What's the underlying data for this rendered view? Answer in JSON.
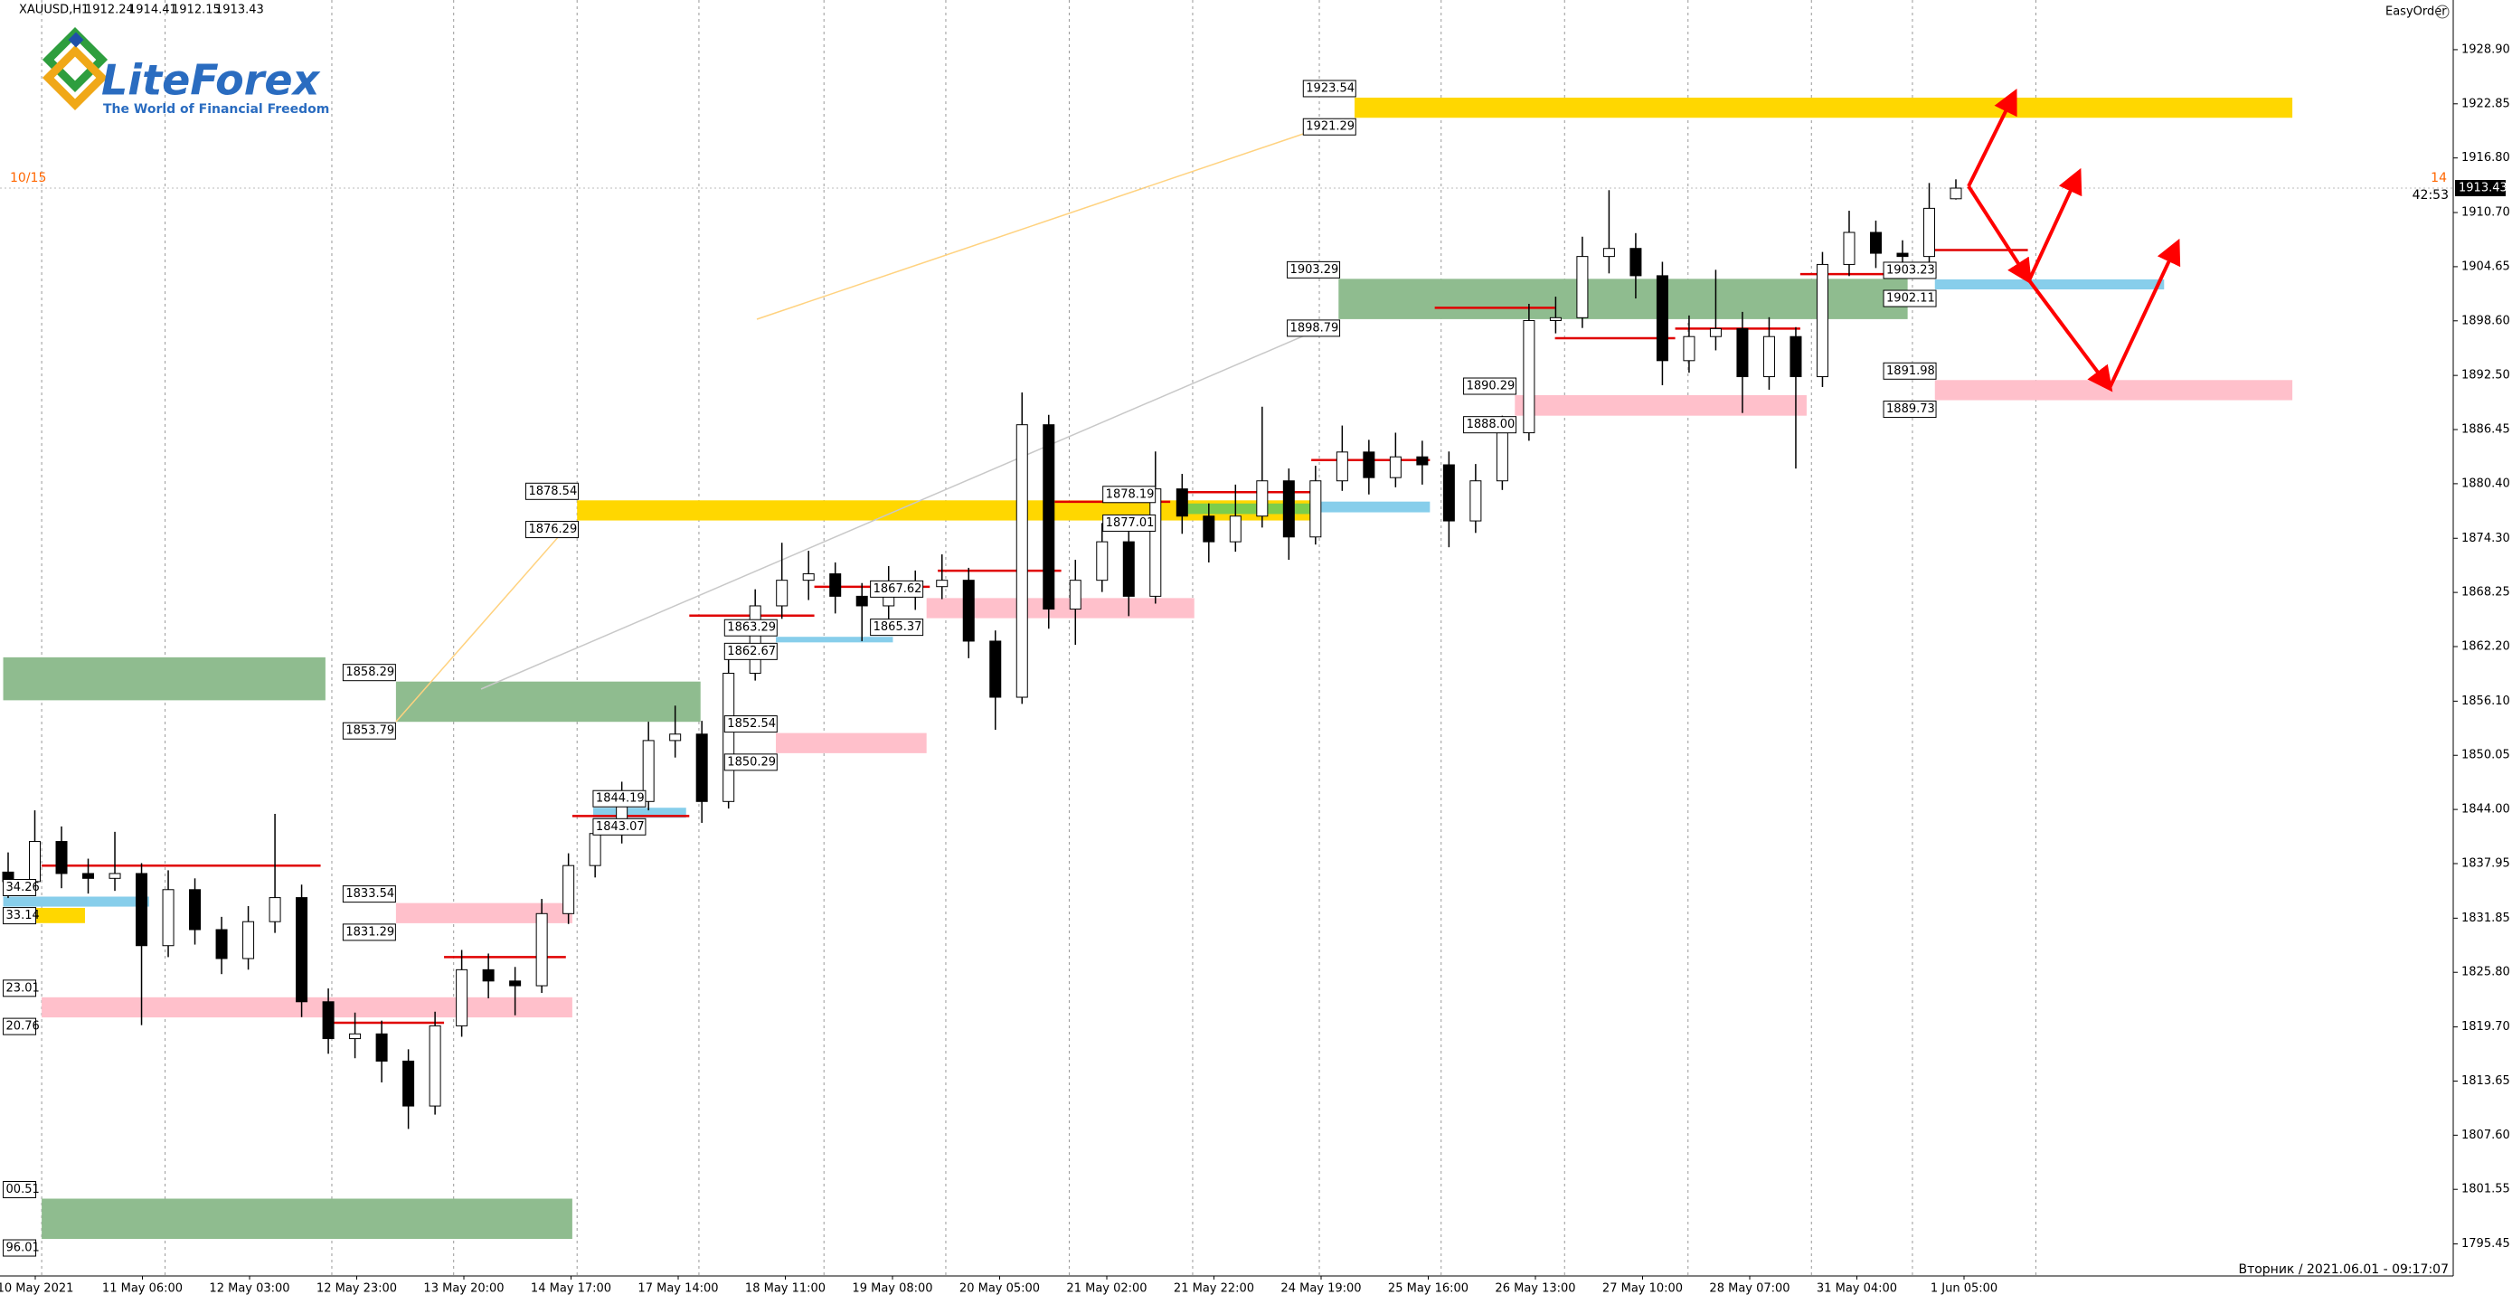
{
  "header": {
    "symbol": "XAUUSD,H1",
    "easy_order": "EasyOrder",
    "left_marker": "10/15",
    "right_marker": "14",
    "timer": "42:53",
    "server_time": "Вторник  /  2021.06.01 - 09:17:07",
    "logo_name": "LiteForex",
    "logo_tagline": "The World of Financial Freedom"
  },
  "chart_data": {
    "type": "candlestick",
    "ylim": [
      1791.87,
      1934.45
    ],
    "yticks": [
      {
        "value": 1928.9,
        "label": "1928.90"
      },
      {
        "value": 1922.85,
        "label": "1922.85"
      },
      {
        "value": 1916.8,
        "label": "1916.80"
      },
      {
        "value": 1910.7,
        "label": "1910.70"
      },
      {
        "value": 1904.65,
        "label": "1904.65"
      },
      {
        "value": 1898.6,
        "label": "1898.60"
      },
      {
        "value": 1892.5,
        "label": "1892.50"
      },
      {
        "value": 1886.45,
        "label": "1886.45"
      },
      {
        "value": 1880.4,
        "label": "1880.40"
      },
      {
        "value": 1874.3,
        "label": "1874.30"
      },
      {
        "value": 1868.25,
        "label": "1868.25"
      },
      {
        "value": 1862.2,
        "label": "1862.20"
      },
      {
        "value": 1856.1,
        "label": "1856.10"
      },
      {
        "value": 1850.05,
        "label": "1850.05"
      },
      {
        "value": 1844.0,
        "label": "1844.00"
      },
      {
        "value": 1837.95,
        "label": "1837.95"
      },
      {
        "value": 1831.85,
        "label": "1831.85"
      },
      {
        "value": 1825.8,
        "label": "1825.80"
      },
      {
        "value": 1819.7,
        "label": "1819.70"
      },
      {
        "value": 1813.65,
        "label": "1813.65"
      },
      {
        "value": 1807.6,
        "label": "1807.60"
      },
      {
        "value": 1801.55,
        "label": "1801.55"
      },
      {
        "value": 1795.45,
        "label": "1795.45"
      }
    ],
    "x_labels": [
      "10 May 2021",
      "11 May 06:00",
      "12 May 03:00",
      "12 May 23:00",
      "13 May 20:00",
      "14 May 17:00",
      "17 May 14:00",
      "18 May 11:00",
      "19 May 08:00",
      "20 May 05:00",
      "21 May 02:00",
      "21 May 22:00",
      "24 May 19:00",
      "25 May 16:00",
      "26 May 13:00",
      "27 May 10:00",
      "28 May 07:00",
      "31 May 04:00",
      "1 Jun 05:00"
    ],
    "up_color": "#ffffff",
    "down_color": "#000000",
    "series": {
      "open": [
        1837.0,
        1835.94,
        1840.42,
        1836.84,
        1836.3,
        1836.84,
        1828.78,
        1835.04,
        1830.57,
        1827.34,
        1831.46,
        1834.15,
        1822.51,
        1818.39,
        1818.92,
        1815.88,
        1810.86,
        1819.82,
        1826.09,
        1824.83,
        1824.3,
        1832.36,
        1837.73,
        1841.31,
        1844.89,
        1851.7,
        1852.42,
        1844.89,
        1859.22,
        1866.75,
        1869.61,
        1870.33,
        1867.82,
        1866.75,
        1868.54,
        1868.9,
        1869.61,
        1862.81,
        1856.54,
        1886.99,
        1866.39,
        1869.61,
        1873.91,
        1867.82,
        1879.82,
        1876.78,
        1873.91,
        1876.78,
        1880.72,
        1874.45,
        1880.72,
        1883.94,
        1881.08,
        1883.4,
        1882.51,
        1876.24,
        1880.72,
        1886.09,
        1898.63,
        1898.95,
        1905.79,
        1906.69,
        1903.64,
        1894.15,
        1896.84,
        1897.73,
        1892.36,
        1896.84,
        1892.36,
        1904.9,
        1908.48,
        1906.15,
        1905.79,
        1912.24
      ],
      "high": [
        1839.2,
        1843.9,
        1842.1,
        1838.5,
        1841.5,
        1838.0,
        1837.2,
        1836.3,
        1832.0,
        1833.2,
        1843.5,
        1835.6,
        1824.0,
        1821.3,
        1820.4,
        1817.2,
        1821.4,
        1828.3,
        1827.9,
        1826.4,
        1834.0,
        1839.1,
        1843.0,
        1847.1,
        1853.8,
        1855.6,
        1853.9,
        1861.0,
        1868.6,
        1873.8,
        1872.9,
        1871.6,
        1869.3,
        1871.2,
        1870.7,
        1872.5,
        1871.0,
        1864.0,
        1890.6,
        1888.1,
        1871.9,
        1876.0,
        1875.2,
        1884.0,
        1881.5,
        1878.2,
        1880.3,
        1889.0,
        1882.1,
        1882.4,
        1886.9,
        1885.3,
        1886.1,
        1885.2,
        1884.0,
        1882.6,
        1888.0,
        1900.5,
        1901.3,
        1908.0,
        1913.2,
        1908.4,
        1905.2,
        1899.2,
        1904.3,
        1899.6,
        1899.0,
        1897.9,
        1906.3,
        1910.9,
        1909.8,
        1907.6,
        1914.0,
        1914.41
      ],
      "low": [
        1834.1,
        1834.8,
        1835.2,
        1834.6,
        1834.9,
        1819.9,
        1827.5,
        1828.9,
        1825.6,
        1826.1,
        1830.2,
        1820.8,
        1816.7,
        1816.2,
        1813.5,
        1808.3,
        1809.9,
        1818.6,
        1822.9,
        1821.0,
        1823.5,
        1831.2,
        1836.4,
        1840.2,
        1843.9,
        1849.8,
        1842.5,
        1844.1,
        1858.4,
        1865.3,
        1867.4,
        1865.9,
        1862.8,
        1865.1,
        1866.3,
        1867.5,
        1860.9,
        1852.9,
        1855.8,
        1864.2,
        1862.4,
        1868.3,
        1865.6,
        1867.0,
        1874.8,
        1871.6,
        1872.8,
        1875.5,
        1871.9,
        1873.6,
        1879.6,
        1879.2,
        1880.0,
        1880.3,
        1873.3,
        1874.9,
        1879.7,
        1885.2,
        1897.2,
        1897.8,
        1903.9,
        1901.1,
        1891.4,
        1892.8,
        1895.3,
        1888.3,
        1890.9,
        1882.1,
        1891.2,
        1903.6,
        1904.5,
        1903.9,
        1905.0,
        1912.15
      ],
      "close": [
        1835.94,
        1840.42,
        1836.84,
        1836.3,
        1836.84,
        1828.78,
        1835.04,
        1830.57,
        1827.34,
        1831.46,
        1834.15,
        1822.51,
        1818.39,
        1818.92,
        1815.88,
        1810.86,
        1819.82,
        1826.09,
        1824.83,
        1824.3,
        1832.36,
        1837.73,
        1841.31,
        1844.89,
        1851.7,
        1852.42,
        1844.89,
        1859.22,
        1866.75,
        1869.61,
        1870.33,
        1867.82,
        1866.75,
        1868.54,
        1868.9,
        1869.61,
        1862.81,
        1856.54,
        1886.99,
        1866.39,
        1869.61,
        1873.91,
        1867.82,
        1879.82,
        1876.78,
        1873.91,
        1876.78,
        1880.72,
        1874.45,
        1880.72,
        1883.94,
        1881.08,
        1883.4,
        1882.51,
        1876.24,
        1880.72,
        1886.09,
        1898.63,
        1898.95,
        1905.79,
        1906.69,
        1903.64,
        1894.15,
        1896.84,
        1897.73,
        1892.36,
        1896.84,
        1892.36,
        1904.9,
        1908.48,
        1906.15,
        1905.79,
        1911.17,
        1913.43
      ]
    },
    "zones": [
      {
        "color": "#ffd700",
        "values": [
          1923.54,
          1921.29
        ]
      },
      {
        "color": "#8fbc8f",
        "values": [
          1903.29,
          1898.79
        ]
      },
      {
        "color": "#ffc0cb",
        "values": [
          1890.29,
          1888.0
        ],
        "value_labels": [
          "1890.29",
          "1888.00"
        ]
      },
      {
        "color": "#ffc0cb",
        "values": [
          1891.98,
          1889.73
        ]
      },
      {
        "color": "#87ceeb",
        "values": [
          1903.23,
          1902.11
        ]
      },
      {
        "color": "#ffd700",
        "values": [
          1878.54,
          1876.29
        ]
      },
      {
        "color": "#8fbc8f",
        "values": [
          1858.29,
          1853.79
        ]
      },
      {
        "color": "#ffc0cb",
        "values": [
          1852.54,
          1850.29
        ]
      },
      {
        "color": "#ffc0cb",
        "values": [
          1833.54,
          1831.29
        ]
      },
      {
        "color": "#ffc0cb",
        "values": [
          1823.01,
          1820.76
        ],
        "value_labels": [
          "23.01",
          "20.76"
        ]
      },
      {
        "color": "#8fbc8f",
        "values": [
          1800.51,
          1796.01
        ],
        "value_labels": [
          "00.51",
          "96.01"
        ]
      },
      {
        "color": "#87ceeb",
        "values": [
          1863.29,
          1862.67
        ]
      },
      {
        "color": "#ffc0cb",
        "values": [
          1867.62,
          1865.37
        ]
      },
      {
        "color": "#87ceeb",
        "values": [
          1844.19,
          1843.07
        ]
      },
      {
        "color": "#87ceeb",
        "values": [
          1834.26,
          1833.14
        ],
        "value_labels": [
          "34.26",
          "33.14"
        ]
      },
      {
        "color": "#7ccd4c",
        "values": [
          1878.19,
          1877.01
        ]
      }
    ],
    "bands": [
      {
        "color": "#8fbc8f",
        "values": [
          1861.0,
          1856.2
        ]
      },
      {
        "color": "#ffd700",
        "values": [
          1833.0,
          1831.3
        ]
      },
      {
        "color": "#87ceeb",
        "values": [
          1878.4,
          1877.2
        ]
      }
    ]
  }
}
